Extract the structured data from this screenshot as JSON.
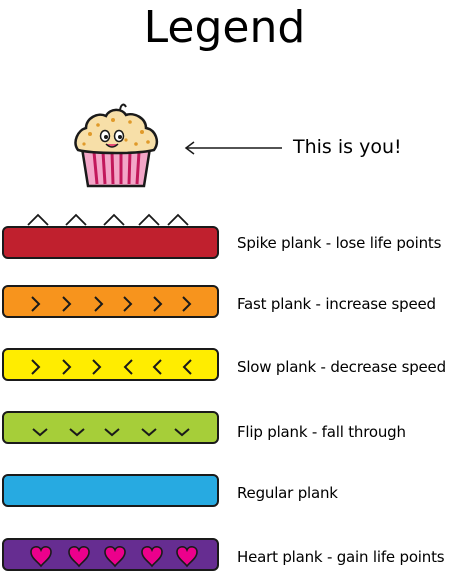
{
  "title": "Legend",
  "player": {
    "label": "This is you!",
    "icon": "cupcake-icon"
  },
  "planks": [
    {
      "id": "spike",
      "label": "Spike plank - lose life points",
      "color": "#c0202e",
      "icon": "spike-icon"
    },
    {
      "id": "fast",
      "label": "Fast plank - increase speed",
      "color": "#f7941d",
      "icon": "chevron-right-icon"
    },
    {
      "id": "slow",
      "label": "Slow plank - decrease speed",
      "color": "#ffed00",
      "icon": "chevron-right-left-icon"
    },
    {
      "id": "flip",
      "label": "Flip plank - fall through",
      "color": "#a6ce39",
      "icon": "chevron-down-icon"
    },
    {
      "id": "regular",
      "label": "Regular plank",
      "color": "#27aae1",
      "icon": ""
    },
    {
      "id": "heart",
      "label": "Heart plank - gain life points",
      "color": "#662d91",
      "icon": "heart-icon"
    }
  ]
}
